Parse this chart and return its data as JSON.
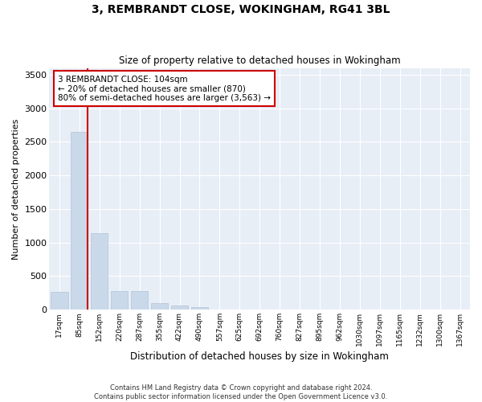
{
  "title": "3, REMBRANDT CLOSE, WOKINGHAM, RG41 3BL",
  "subtitle": "Size of property relative to detached houses in Wokingham",
  "xlabel": "Distribution of detached houses by size in Wokingham",
  "ylabel": "Number of detached properties",
  "bar_color": "#cad9ea",
  "bar_edge_color": "#b0c4d8",
  "background_color": "#e8eef6",
  "grid_color": "#ffffff",
  "categories": [
    "17sqm",
    "85sqm",
    "152sqm",
    "220sqm",
    "287sqm",
    "355sqm",
    "422sqm",
    "490sqm",
    "557sqm",
    "625sqm",
    "692sqm",
    "760sqm",
    "827sqm",
    "895sqm",
    "962sqm",
    "1030sqm",
    "1097sqm",
    "1165sqm",
    "1232sqm",
    "1300sqm",
    "1367sqm"
  ],
  "values": [
    270,
    2650,
    1140,
    280,
    280,
    100,
    65,
    40,
    0,
    0,
    0,
    0,
    0,
    0,
    0,
    0,
    0,
    0,
    0,
    0,
    0
  ],
  "ylim": [
    0,
    3600
  ],
  "yticks": [
    0,
    500,
    1000,
    1500,
    2000,
    2500,
    3000,
    3500
  ],
  "vline_color": "#cc0000",
  "vline_x": 1.425,
  "annotation_line1": "3 REMBRANDT CLOSE: 104sqm",
  "annotation_line2": "← 20% of detached houses are smaller (870)",
  "annotation_line3": "80% of semi-detached houses are larger (3,563) →",
  "annotation_box_color": "#ffffff",
  "annotation_box_edge": "#cc0000",
  "footer_line1": "Contains HM Land Registry data © Crown copyright and database right 2024.",
  "footer_line2": "Contains public sector information licensed under the Open Government Licence v3.0."
}
